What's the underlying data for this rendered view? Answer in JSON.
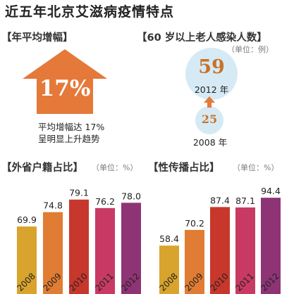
{
  "title": "近五年北京艾滋病疫情特点",
  "growth": {
    "section_title": "【年平均增幅】",
    "value": "17%",
    "line1": "平均增幅达 17%",
    "line2": "呈明显上升趋势",
    "arrow_color": "#e5793a"
  },
  "elderly": {
    "section_title": "【60 岁以上老人感染人数】",
    "unit": "（单位：例）",
    "items": [
      {
        "value": "59",
        "year": "2012 年"
      },
      {
        "value": "25",
        "year": "2008 年"
      }
    ],
    "bubble_color": "#d6eaf5"
  },
  "chart_data": [
    {
      "type": "bar",
      "title": "【外省户籍占比】",
      "unit": "（单位：%）",
      "categories": [
        "2008",
        "2009",
        "2010",
        "2011",
        "2012"
      ],
      "values": [
        69.9,
        74.8,
        79.1,
        76.2,
        78.0
      ],
      "value_labels": [
        "69.9",
        "74.8",
        "79.1",
        "76.2",
        "78.0"
      ],
      "colors": [
        "#d8a42e",
        "#e07c33",
        "#c8372c",
        "#c83a63",
        "#8e3475"
      ],
      "ylim": [
        55,
        80
      ]
    },
    {
      "type": "bar",
      "title": "【性传播占比】",
      "unit": "（单位：%）",
      "categories": [
        "2008",
        "2009",
        "2010",
        "2011",
        "2012"
      ],
      "values": [
        58.4,
        70.2,
        87.4,
        87.1,
        94.4
      ],
      "value_labels": [
        "58.4",
        "70.2",
        "87.4",
        "87.1",
        "94.4"
      ],
      "colors": [
        "#d8a42e",
        "#e07c33",
        "#c8372c",
        "#c83a63",
        "#8e3475"
      ],
      "ylim": [
        40,
        95
      ]
    }
  ]
}
